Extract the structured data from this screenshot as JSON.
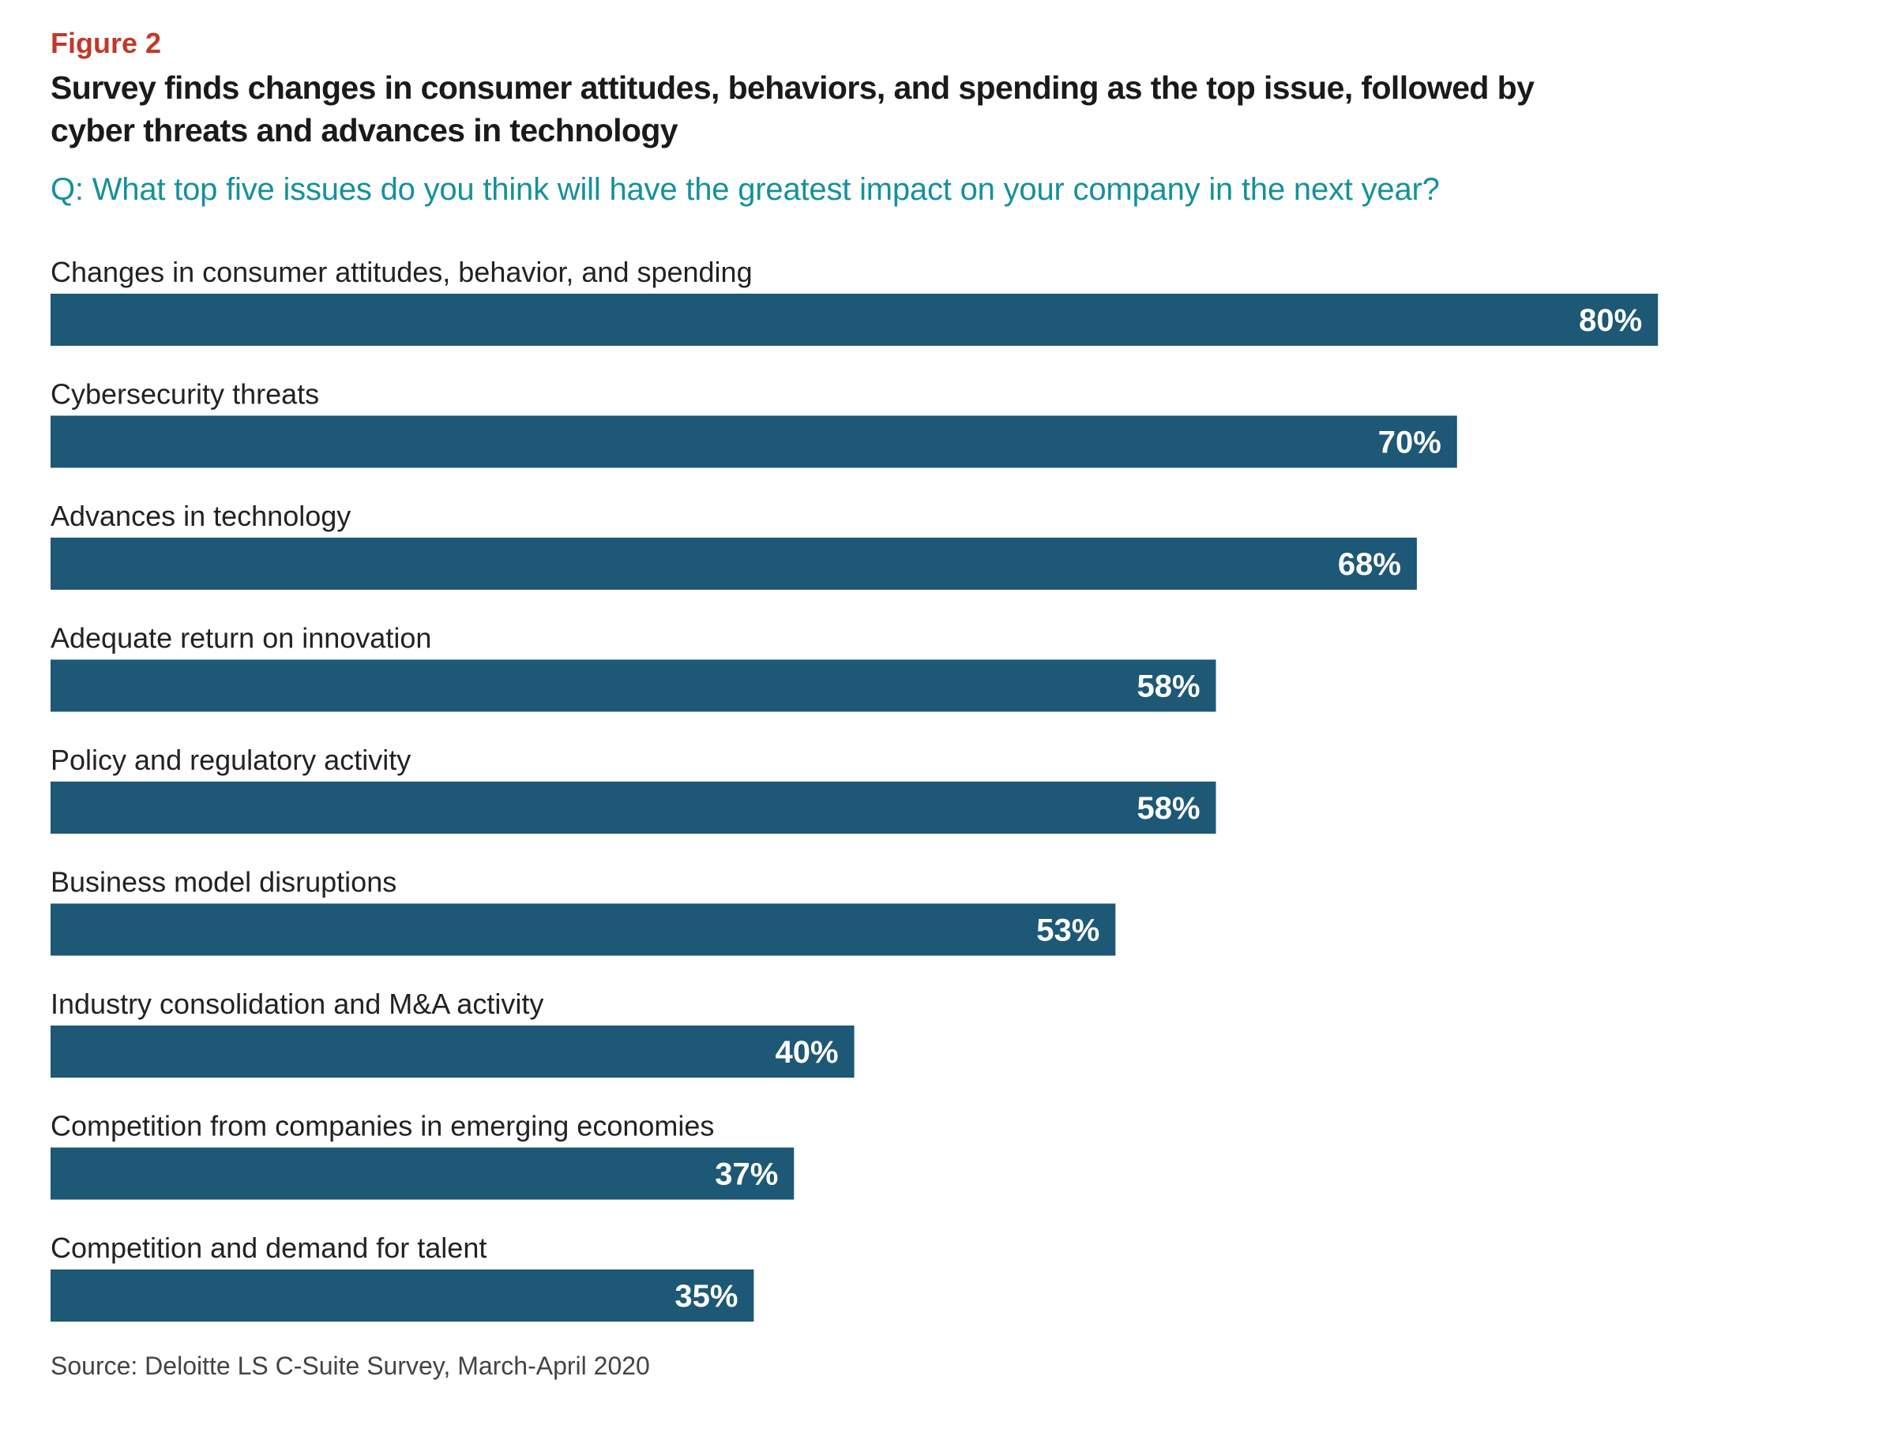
{
  "figure": {
    "label": "Figure 2",
    "title": "Survey finds changes in consumer attitudes, behaviors, and spending as the top issue, followed by cyber threats and advances in technology",
    "question": "Q: What top five issues do you think will have the greatest impact on your company in the next year?",
    "source": "Source: Deloitte LS C-Suite Survey, March-April 2020"
  },
  "colors": {
    "bar": "#1d5876",
    "figure_label": "#c0392b",
    "question": "#14919b"
  },
  "chart_data": {
    "type": "bar",
    "orientation": "horizontal",
    "categories": [
      "Changes in consumer attitudes, behavior, and spending",
      "Cybersecurity threats",
      "Advances in technology",
      "Adequate return on innovation",
      "Policy and regulatory activity",
      "Business model disruptions",
      "Industry consolidation and M&A activity",
      "Competition from companies in emerging economies",
      "Competition and demand for talent"
    ],
    "values": [
      80,
      70,
      68,
      58,
      58,
      53,
      40,
      37,
      35
    ],
    "value_labels": [
      "80%",
      "70%",
      "68%",
      "58%",
      "58%",
      "53%",
      "40%",
      "37%",
      "35%"
    ],
    "title": "",
    "xlabel": "",
    "ylabel": "",
    "xlim": [
      0,
      100
    ],
    "grid": false,
    "legend": "none"
  }
}
